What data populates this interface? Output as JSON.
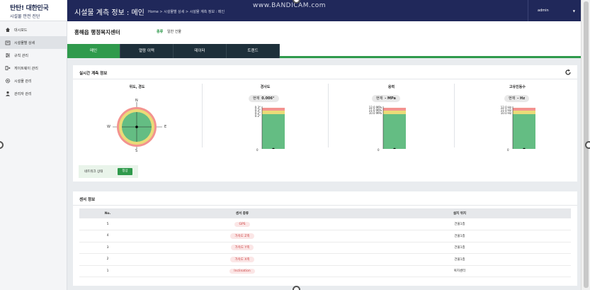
{
  "brand": {
    "line1": "탄탄! 대한민국",
    "line2": "시설물 안전 진단"
  },
  "sidebar": {
    "items": [
      {
        "label": "대시보드",
        "icon": "home-icon"
      },
      {
        "label": "시설물별 상세",
        "icon": "building-icon",
        "active": true
      },
      {
        "label": "규칙 관리",
        "icon": "sliders-icon"
      },
      {
        "label": "게이트웨이 관리",
        "icon": "gateway-icon"
      },
      {
        "label": "시설물 관리",
        "icon": "gear-icon"
      },
      {
        "label": "관리자 관리",
        "icon": "user-icon"
      }
    ]
  },
  "header": {
    "title": "시설물 계측 정보 : 메인",
    "breadcrumb": "Home > 시설물별 상세 > 시설물 계측 정보 : 메인",
    "watermark": "www.BANDICAM.com",
    "user": "admin"
  },
  "page": {
    "facility_name": "흥해읍 행정복지센터",
    "kind_label": "종류",
    "kind_value": "일반 건물"
  },
  "tabs": [
    {
      "label": "메인",
      "active": true
    },
    {
      "label": "열람 이력"
    },
    {
      "label": "데이터"
    },
    {
      "label": "트렌드"
    }
  ],
  "realtime": {
    "title": "실시간 계측 정보",
    "compass": {
      "title": "위도, 경도",
      "n": "N",
      "s": "S",
      "e": "E",
      "w": "W"
    },
    "tilt": {
      "title": "경사도",
      "current_label": "현재",
      "current_value": "0.006°",
      "ticks": [
        "0.3°",
        "0.3°",
        "0.2°",
        "0.2°"
      ],
      "zero": "0"
    },
    "stress": {
      "title": "응력",
      "current_label": "현재",
      "current_value": "- MPa",
      "ticks": [
        "12.0 MPa",
        "11.0 MPa",
        "10.0 MPa"
      ],
      "zero": "0"
    },
    "frequency": {
      "title": "고유진동수",
      "current_label": "현재",
      "current_value": "- Hz",
      "ticks": [
        "12.0 Hz",
        "11.0 Hz",
        "10.0 Hz"
      ],
      "zero": "0"
    },
    "network_label": "네트워크 상태",
    "network_status": "정상"
  },
  "sensors": {
    "title": "센서 정보",
    "headers": [
      "No.",
      "센서 종류",
      "설치 위치"
    ],
    "rows": [
      {
        "no": "5",
        "type": "GPS",
        "location": "건물1층"
      },
      {
        "no": "4",
        "type": "가속도 Z축",
        "location": "건물1층"
      },
      {
        "no": "3",
        "type": "가속도 Y축",
        "location": "건물1층"
      },
      {
        "no": "2",
        "type": "가속도 X축",
        "location": "건물1층"
      },
      {
        "no": "1",
        "type": "Inclination",
        "location": "복지센터"
      }
    ]
  },
  "colors": {
    "navy": "#20285a",
    "green": "#2f9a4c",
    "gauge_green": "#6cc08b",
    "gauge_yellow": "#f2e27d",
    "gauge_red": "#ef8a8a"
  }
}
